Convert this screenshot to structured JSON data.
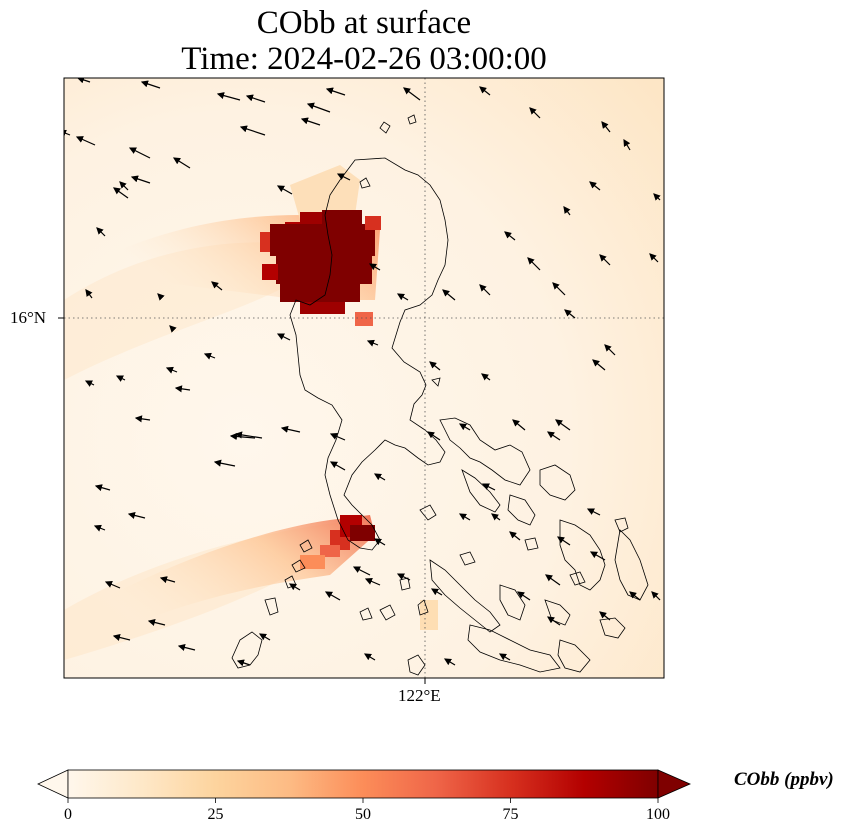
{
  "title": {
    "line1": "CObb at surface",
    "line2": "Time: 2024-02-26 03:00:00"
  },
  "axes": {
    "lat_label": "16°N",
    "lon_label": "122°E",
    "gridlines": "dotted",
    "lat_gridline": 16,
    "lon_gridline": 122
  },
  "colorbar": {
    "label": "CObb (ppbv)",
    "ticks": [
      "0",
      "25",
      "50",
      "75",
      "100"
    ],
    "min": 0,
    "max": 100,
    "extend": "both",
    "colormap": "OrRd",
    "colors": [
      "#fff7ec",
      "#fee8c8",
      "#fdd49e",
      "#fdbb84",
      "#fc8d59",
      "#ef6548",
      "#d7301f",
      "#b30000",
      "#7f0000"
    ]
  },
  "map": {
    "background_color": "#fef2e3",
    "coastline_color": "#000000",
    "wind_vectors": "black quiver arrows, mostly pointing west/southwest",
    "hotspots": [
      {
        "region": "northern Luzon",
        "value": 100
      },
      {
        "region": "southern Luzon",
        "value": 100
      }
    ]
  }
}
